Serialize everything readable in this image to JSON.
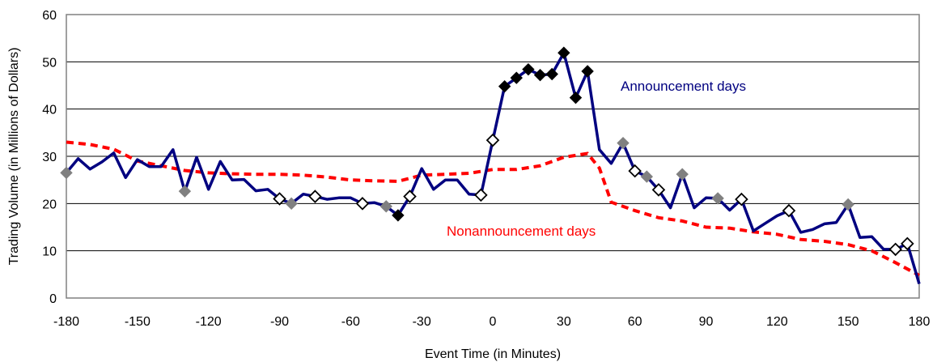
{
  "chart_data": {
    "type": "line",
    "title": "",
    "xlabel": "Event Time (in Minutes)",
    "ylabel": "Trading Volume (in Millions of Dollars)",
    "xlim": [
      -180,
      180
    ],
    "ylim": [
      0,
      60
    ],
    "x_ticks": [
      "-180",
      "-150",
      "-120",
      "-90",
      "-60",
      "-30",
      "0",
      "30",
      "60",
      "90",
      "120",
      "150",
      "180"
    ],
    "y_ticks": [
      "0",
      "10",
      "20",
      "30",
      "40",
      "50",
      "60"
    ],
    "grid": "horizontal",
    "colors": {
      "announcement": "#000080",
      "nonannouncement": "#ff0000",
      "gray_marker": "#808080",
      "black_marker": "#000000",
      "grid": "#000000"
    },
    "annotations": [
      {
        "text": "Announcement days",
        "series": "announcement"
      },
      {
        "text": "Nonannouncement days",
        "series": "nonannouncement"
      }
    ],
    "series": [
      {
        "id": "announcement",
        "style": "solid",
        "x": [
          -180,
          -175,
          -170,
          -165,
          -160,
          -155,
          -150,
          -145,
          -140,
          -135,
          -130,
          -125,
          -120,
          -115,
          -110,
          -105,
          -100,
          -95,
          -90,
          -85,
          -80,
          -75,
          -70,
          -65,
          -60,
          -55,
          -50,
          -45,
          -40,
          -35,
          -30,
          -25,
          -20,
          -15,
          -10,
          -5,
          0,
          5,
          10,
          15,
          20,
          25,
          30,
          35,
          40,
          45,
          50,
          55,
          60,
          65,
          70,
          75,
          80,
          85,
          90,
          95,
          100,
          105,
          110,
          115,
          120,
          125,
          130,
          135,
          140,
          145,
          150,
          155,
          160,
          165,
          170,
          175,
          180
        ],
        "values": [
          26.5,
          29.5,
          27.3,
          28.8,
          30.7,
          25.5,
          29.3,
          27.8,
          27.8,
          31.4,
          22.6,
          29.8,
          23.0,
          28.9,
          25.0,
          25.1,
          22.7,
          23.0,
          21.0,
          20.0,
          22.0,
          21.5,
          20.9,
          21.2,
          21.2,
          20.0,
          20.2,
          19.4,
          17.5,
          21.5,
          27.4,
          23.0,
          25.0,
          25.0,
          22.0,
          21.8,
          33.4,
          44.8,
          46.6,
          48.4,
          47.2,
          47.4,
          51.9,
          42.4,
          48.0,
          31.4,
          28.5,
          32.8,
          26.9,
          25.7,
          22.9,
          19.1,
          26.2,
          19.1,
          21.2,
          21.1,
          18.6,
          20.9,
          14.2,
          15.8,
          17.4,
          18.5,
          13.9,
          14.5,
          15.7,
          16.0,
          19.8,
          12.8,
          13.0,
          10.3,
          10.3,
          11.5,
          3.0
        ],
        "markers": [
          {
            "x": -180,
            "y": 26.5,
            "style": "gray"
          },
          {
            "x": -130,
            "y": 22.6,
            "style": "gray"
          },
          {
            "x": -90,
            "y": 21.0,
            "style": "open"
          },
          {
            "x": -85,
            "y": 20.0,
            "style": "gray"
          },
          {
            "x": -75,
            "y": 21.5,
            "style": "open"
          },
          {
            "x": -55,
            "y": 20.0,
            "style": "open"
          },
          {
            "x": -45,
            "y": 19.4,
            "style": "gray"
          },
          {
            "x": -40,
            "y": 17.5,
            "style": "black"
          },
          {
            "x": -35,
            "y": 21.5,
            "style": "open"
          },
          {
            "x": -5,
            "y": 21.8,
            "style": "open"
          },
          {
            "x": 0,
            "y": 33.4,
            "style": "open"
          },
          {
            "x": 5,
            "y": 44.8,
            "style": "black"
          },
          {
            "x": 10,
            "y": 46.6,
            "style": "black"
          },
          {
            "x": 15,
            "y": 48.4,
            "style": "black"
          },
          {
            "x": 20,
            "y": 47.2,
            "style": "black"
          },
          {
            "x": 25,
            "y": 47.4,
            "style": "black"
          },
          {
            "x": 30,
            "y": 51.9,
            "style": "black"
          },
          {
            "x": 35,
            "y": 42.4,
            "style": "black"
          },
          {
            "x": 40,
            "y": 48.0,
            "style": "black"
          },
          {
            "x": 55,
            "y": 32.8,
            "style": "gray"
          },
          {
            "x": 60,
            "y": 26.9,
            "style": "open"
          },
          {
            "x": 65,
            "y": 25.7,
            "style": "gray"
          },
          {
            "x": 70,
            "y": 22.9,
            "style": "open"
          },
          {
            "x": 80,
            "y": 26.2,
            "style": "gray"
          },
          {
            "x": 95,
            "y": 21.1,
            "style": "gray"
          },
          {
            "x": 105,
            "y": 20.9,
            "style": "open"
          },
          {
            "x": 125,
            "y": 18.5,
            "style": "open"
          },
          {
            "x": 150,
            "y": 19.8,
            "style": "gray"
          },
          {
            "x": 170,
            "y": 10.3,
            "style": "open"
          },
          {
            "x": 175,
            "y": 11.5,
            "style": "open"
          }
        ]
      },
      {
        "id": "nonannouncement",
        "style": "dashed",
        "x": [
          -180,
          -170,
          -160,
          -150,
          -140,
          -130,
          -120,
          -110,
          -100,
          -90,
          -80,
          -70,
          -60,
          -50,
          -40,
          -30,
          -20,
          -10,
          0,
          10,
          20,
          30,
          40,
          45,
          50,
          60,
          70,
          80,
          90,
          100,
          110,
          120,
          130,
          140,
          150,
          160,
          170,
          180
        ],
        "values": [
          33.0,
          32.5,
          31.5,
          29.0,
          28.0,
          27.0,
          26.5,
          26.3,
          26.2,
          26.2,
          26.0,
          25.6,
          25.0,
          24.8,
          24.7,
          26.0,
          26.2,
          26.4,
          27.2,
          27.2,
          28.0,
          29.8,
          30.6,
          27.5,
          20.3,
          18.5,
          17.0,
          16.3,
          15.0,
          14.8,
          14.0,
          13.5,
          12.4,
          12.0,
          11.3,
          10.0,
          7.5,
          4.8
        ]
      }
    ]
  }
}
